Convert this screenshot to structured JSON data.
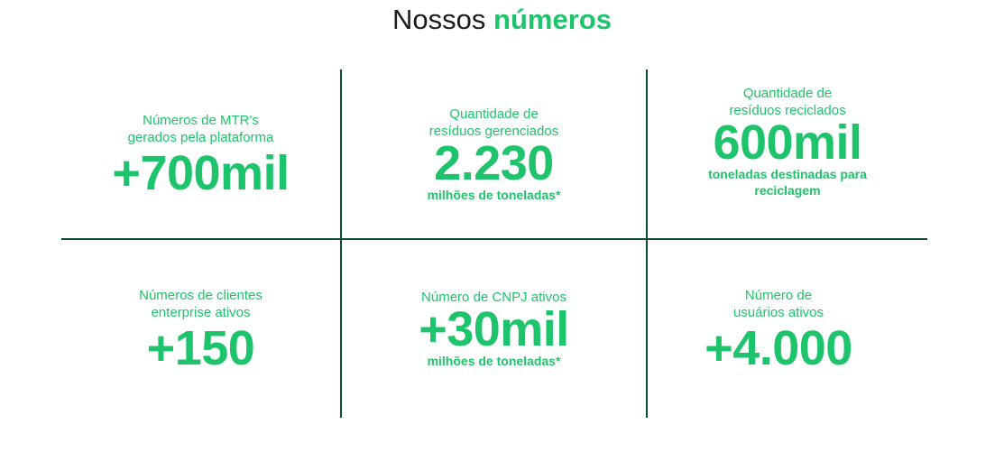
{
  "heading": {
    "prefix": "Nossos",
    "highlight": "números"
  },
  "colors": {
    "accent": "#1ec46b",
    "divider": "#0f4a37",
    "heading_text": "#1b1b1b"
  },
  "stats": [
    {
      "label_lines": [
        "Números de MTR's",
        "gerados pela plataforma"
      ],
      "value": "+700mil",
      "sub_lines": []
    },
    {
      "label_lines": [
        "Quantidade de",
        "resíduos gerenciados"
      ],
      "value": "2.230",
      "sub_lines": [
        "milhões de toneladas*"
      ]
    },
    {
      "label_lines": [
        "Quantidade de",
        "resíduos reciclados"
      ],
      "value": "600mil",
      "sub_lines": [
        "toneladas destinadas para",
        "reciclagem"
      ]
    },
    {
      "label_lines": [
        "Números de clientes",
        "enterprise ativos"
      ],
      "value": "+150",
      "sub_lines": []
    },
    {
      "label_lines": [
        "Número de CNPJ ativos"
      ],
      "value": "+30mil",
      "sub_lines": [
        "milhões de toneladas*"
      ]
    },
    {
      "label_lines": [
        "Número de",
        "usuários ativos"
      ],
      "value": "+4.000",
      "sub_lines": []
    }
  ]
}
